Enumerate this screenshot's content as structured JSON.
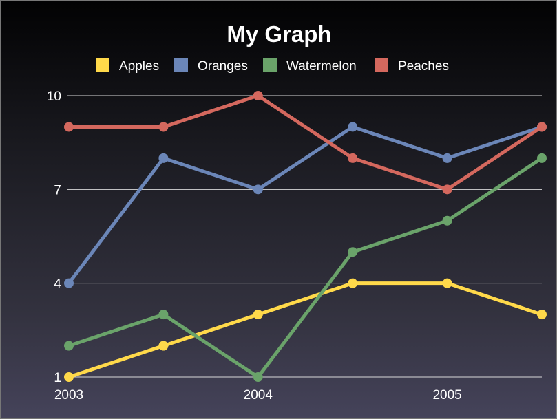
{
  "chart_data": {
    "type": "line",
    "title": "My Graph",
    "xlabel": "",
    "ylabel": "",
    "x": [
      0,
      1,
      2,
      3,
      4,
      5
    ],
    "x_tick_labels": [
      {
        "at": 0,
        "label": "2003"
      },
      {
        "at": 2,
        "label": "2004"
      },
      {
        "at": 4,
        "label": "2005"
      }
    ],
    "y_ticks": [
      1,
      4,
      7,
      10
    ],
    "ylim": [
      1,
      10
    ],
    "xlim": [
      0,
      5
    ],
    "grid": "horizontal",
    "legend_position": "top",
    "series": [
      {
        "name": "Apples",
        "color": "#ffd94a",
        "values": [
          1,
          2,
          3,
          4,
          4,
          3
        ]
      },
      {
        "name": "Oranges",
        "color": "#6b86b8",
        "values": [
          4,
          8,
          7,
          9,
          8,
          9
        ]
      },
      {
        "name": "Watermelon",
        "color": "#6aa36a",
        "values": [
          2,
          3,
          1,
          5,
          6,
          8
        ]
      },
      {
        "name": "Peaches",
        "color": "#d4685e",
        "values": [
          9,
          9,
          10,
          8,
          7,
          9
        ]
      }
    ]
  }
}
